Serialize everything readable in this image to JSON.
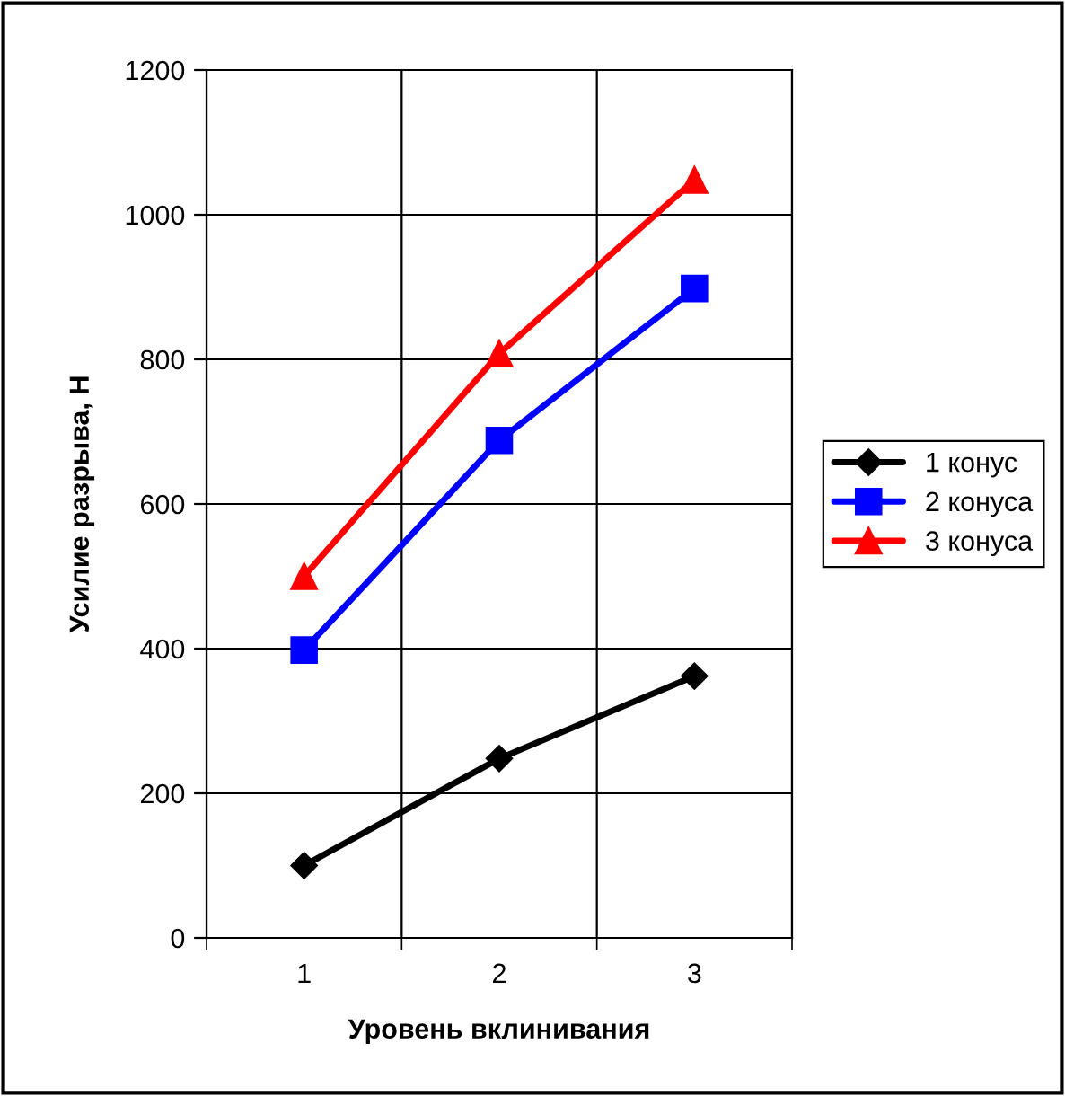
{
  "chart_data": {
    "type": "line",
    "xlabel": "Уровень вклинивания",
    "ylabel": "Усилие разрыва, Н",
    "categories": [
      "1",
      "2",
      "3"
    ],
    "series": [
      {
        "name": "1 конус",
        "color": "#000000",
        "marker": "diamond",
        "values": [
          100,
          248,
          362
        ]
      },
      {
        "name": "2 конуса",
        "color": "#0000ff",
        "marker": "square",
        "values": [
          398,
          688,
          898
        ]
      },
      {
        "name": "3 конуса",
        "color": "#ff0000",
        "marker": "triangle",
        "values": [
          500,
          808,
          1048
        ]
      }
    ],
    "ylim": [
      0,
      1200
    ],
    "yticks": [
      0,
      200,
      400,
      600,
      800,
      1000,
      1200
    ],
    "grid": true,
    "legend": "right",
    "line_style": "solid"
  }
}
